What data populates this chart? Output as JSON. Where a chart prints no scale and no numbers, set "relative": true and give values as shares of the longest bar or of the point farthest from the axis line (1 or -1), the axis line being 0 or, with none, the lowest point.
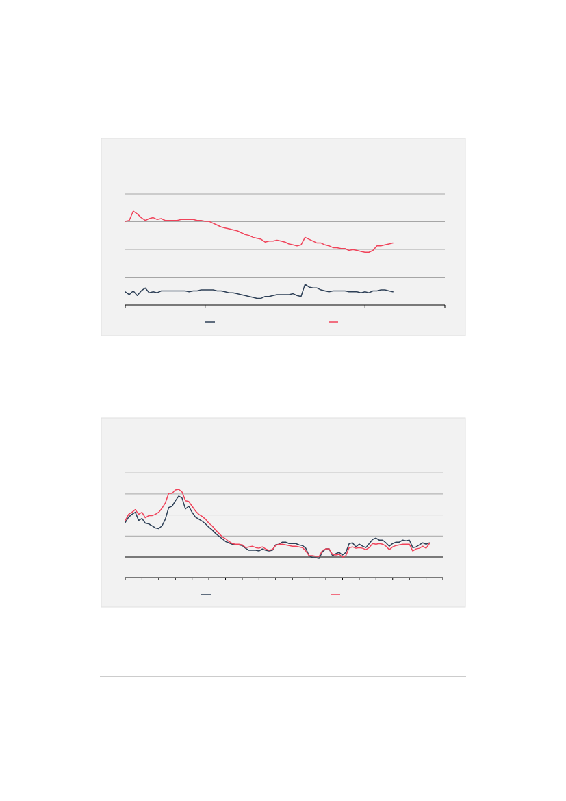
{
  "chart_data": [
    {
      "type": "line",
      "relative": true,
      "grid": true,
      "categories": [
        null,
        null,
        null,
        null,
        null,
        null,
        null,
        null,
        null,
        null,
        null,
        null,
        null,
        null,
        null,
        null,
        null,
        null,
        null,
        null,
        null,
        null,
        null,
        null,
        null,
        null,
        null,
        null,
        null,
        null,
        null,
        null,
        null,
        null,
        null,
        null,
        null,
        null,
        null,
        null,
        null,
        null,
        null,
        null,
        null,
        null,
        null,
        null,
        null,
        null,
        null,
        null,
        null,
        null,
        null,
        null,
        null,
        null,
        null,
        null,
        null,
        null,
        null,
        null,
        null,
        null,
        null,
        null,
        null,
        null,
        null,
        null,
        null,
        null,
        null,
        null,
        null,
        null,
        null,
        null,
        null
      ],
      "series": [
        {
          "color": "#2e4057",
          "values": [
            0.14,
            0.11,
            0.15,
            0.1,
            0.15,
            0.18,
            0.13,
            0.14,
            0.13,
            0.15,
            0.15,
            0.15,
            0.15,
            0.15,
            0.15,
            0.15,
            0.14,
            0.15,
            0.15,
            0.16,
            0.16,
            0.16,
            0.16,
            0.15,
            0.15,
            0.14,
            0.13,
            0.13,
            0.12,
            0.11,
            0.1,
            0.09,
            0.08,
            0.07,
            0.07,
            0.09,
            0.09,
            0.1,
            0.11,
            0.11,
            0.11,
            0.11,
            0.12,
            0.1,
            0.09,
            0.22,
            0.19,
            0.18,
            0.18,
            0.16,
            0.15,
            0.14,
            0.15,
            0.15,
            0.15,
            0.15,
            0.14,
            0.14,
            0.14,
            0.13,
            0.14,
            0.13,
            0.15,
            0.15,
            0.16,
            0.16,
            0.15,
            0.14,
            null,
            null,
            null,
            null,
            null,
            null,
            null,
            null,
            null,
            null,
            null,
            null,
            null
          ]
        },
        {
          "color": "#f0435a",
          "values": [
            0.89,
            0.9,
            1.0,
            0.97,
            0.93,
            0.9,
            0.92,
            0.93,
            0.91,
            0.92,
            0.9,
            0.9,
            0.9,
            0.9,
            0.91,
            0.91,
            0.91,
            0.91,
            0.9,
            0.9,
            0.89,
            0.89,
            0.87,
            0.85,
            0.83,
            0.82,
            0.81,
            0.8,
            0.79,
            0.77,
            0.75,
            0.74,
            0.72,
            0.71,
            0.7,
            0.67,
            0.68,
            0.68,
            0.69,
            0.68,
            0.67,
            0.65,
            0.64,
            0.63,
            0.64,
            0.72,
            0.7,
            0.68,
            0.66,
            0.66,
            0.64,
            0.63,
            0.61,
            0.61,
            0.6,
            0.6,
            0.58,
            0.59,
            0.58,
            0.57,
            0.56,
            0.56,
            0.58,
            0.63,
            0.63,
            0.64,
            0.65,
            0.66,
            null,
            null,
            null,
            null,
            null,
            null,
            null,
            null,
            null,
            null,
            null,
            null,
            null
          ]
        }
      ]
    },
    {
      "type": "line",
      "relative": true,
      "grid": true,
      "categories": [
        null,
        null,
        null,
        null,
        null,
        null,
        null,
        null,
        null,
        null,
        null,
        null,
        null,
        null,
        null,
        null,
        null,
        null,
        null,
        null,
        null,
        null,
        null,
        null,
        null,
        null,
        null,
        null,
        null,
        null,
        null,
        null,
        null,
        null,
        null,
        null,
        null,
        null,
        null,
        null,
        null,
        null,
        null,
        null,
        null,
        null,
        null,
        null,
        null,
        null,
        null,
        null,
        null,
        null,
        null,
        null,
        null,
        null,
        null,
        null,
        null,
        null,
        null,
        null,
        null,
        null,
        null,
        null,
        null,
        null,
        null,
        null,
        null,
        null,
        null,
        null,
        null,
        null,
        null,
        null,
        null,
        null,
        null,
        null,
        null,
        null,
        null,
        null,
        null,
        null,
        null,
        null,
        null,
        null,
        null,
        null
      ],
      "series": [
        {
          "color": "#2e4057",
          "values": [
            0.51,
            0.59,
            0.63,
            0.66,
            0.54,
            0.57,
            0.5,
            0.49,
            0.46,
            0.43,
            0.42,
            0.46,
            0.56,
            0.73,
            0.75,
            0.83,
            0.9,
            0.87,
            0.71,
            0.75,
            0.66,
            0.59,
            0.56,
            0.53,
            0.49,
            0.44,
            0.4,
            0.35,
            0.31,
            0.27,
            0.23,
            0.21,
            0.19,
            0.18,
            0.18,
            0.17,
            0.13,
            0.1,
            0.1,
            0.1,
            0.09,
            0.12,
            0.1,
            0.09,
            0.1,
            0.18,
            0.19,
            0.22,
            0.22,
            0.2,
            0.2,
            0.2,
            0.18,
            0.17,
            0.13,
            0.02,
            -0.01,
            -0.01,
            -0.02,
            0.08,
            0.12,
            0.12,
            0.02,
            0.05,
            0.07,
            0.03,
            0.07,
            0.2,
            0.21,
            0.15,
            0.19,
            0.16,
            0.14,
            0.2,
            0.26,
            0.28,
            0.25,
            0.25,
            0.21,
            0.16,
            0.2,
            0.22,
            0.22,
            0.25,
            0.24,
            0.25,
            0.14,
            0.15,
            0.18,
            0.21,
            0.19,
            0.21,
            null,
            null,
            null,
            null
          ]
        },
        {
          "color": "#f0435a",
          "values": [
            0.54,
            0.63,
            0.66,
            0.7,
            0.63,
            0.66,
            0.58,
            0.61,
            0.61,
            0.63,
            0.66,
            0.72,
            0.8,
            0.94,
            0.94,
            0.99,
            1.0,
            0.96,
            0.83,
            0.82,
            0.75,
            0.68,
            0.63,
            0.6,
            0.56,
            0.5,
            0.46,
            0.4,
            0.35,
            0.3,
            0.27,
            0.23,
            0.2,
            0.19,
            0.19,
            0.18,
            0.14,
            0.15,
            0.16,
            0.14,
            0.13,
            0.15,
            0.12,
            0.1,
            0.11,
            0.17,
            0.19,
            0.19,
            0.18,
            0.17,
            0.16,
            0.16,
            0.15,
            0.14,
            0.09,
            0.02,
            0.02,
            0.01,
            0.01,
            0.1,
            0.12,
            0.12,
            0.04,
            0.03,
            0.04,
            0.0,
            0.02,
            0.14,
            0.15,
            0.13,
            0.14,
            0.13,
            0.11,
            0.14,
            0.2,
            0.19,
            0.2,
            0.19,
            0.16,
            0.11,
            0.15,
            0.17,
            0.18,
            0.19,
            0.19,
            0.19,
            0.09,
            0.12,
            0.13,
            0.16,
            0.13,
            0.2,
            null,
            null,
            null,
            null
          ]
        }
      ]
    }
  ]
}
